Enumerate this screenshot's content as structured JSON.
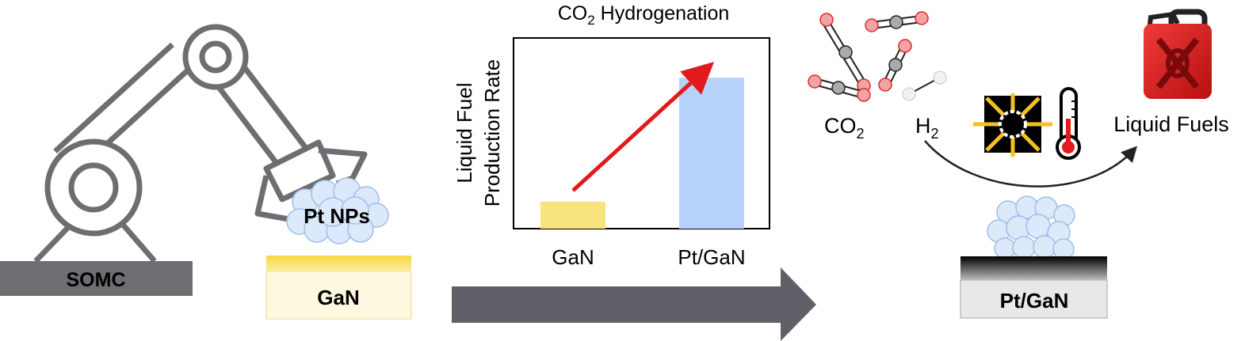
{
  "left_panel": {
    "base_label": "SOMC",
    "particles_label": "Pt NPs",
    "substrate_label": "GaN"
  },
  "chart_data": {
    "type": "bar",
    "title_main": "CO",
    "title_sub": "2",
    "title_rest": " Hydrogenation",
    "ylabel_line1": "Liquid Fuel",
    "ylabel_line2": "Production Rate",
    "categories": [
      "GaN",
      "Pt/GaN"
    ],
    "values": [
      0.17,
      0.95
    ],
    "ylim": [
      0,
      1.2
    ],
    "colors": [
      "#f8e37c",
      "#b6d1fa"
    ],
    "annotation": "red trend arrow from GaN to Pt/GaN"
  },
  "right_panel": {
    "co2_main": "CO",
    "co2_sub": "2",
    "h2_main": "H",
    "h2_sub": "2",
    "product_label": "Liquid Fuels",
    "catalyst_label": "Pt/GaN",
    "light_icon": "sun-light-icon",
    "thermometer_icon": "thermometer-icon",
    "fuel_icon": "fuel-canister-icon"
  },
  "colors": {
    "robot_gray": "#6e6d72",
    "arrow_gray": "#616068",
    "gan_yellow": "#f6d63c",
    "gan_cream": "#fdf8df",
    "particle_blue": "#dbe9fb",
    "trend_red": "#e11b1b",
    "fuel_red": "#d11515"
  }
}
